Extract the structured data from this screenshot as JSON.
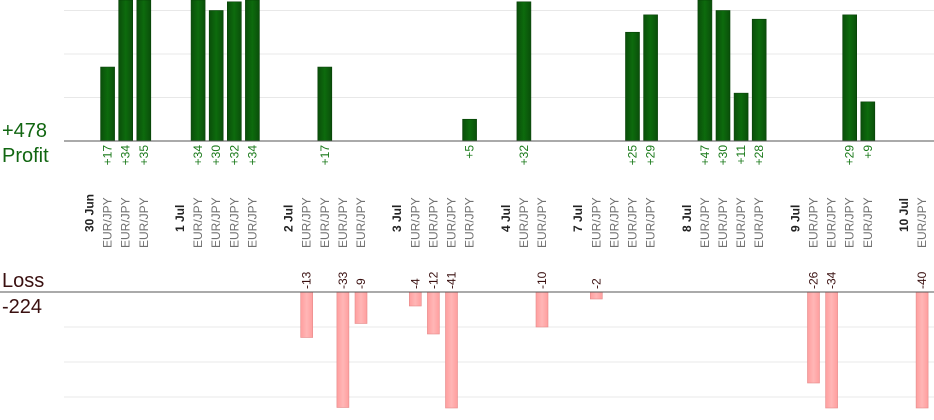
{
  "summary": {
    "profit_total": "+478",
    "profit_label": "Profit",
    "loss_label": "Loss",
    "loss_total": "-224"
  },
  "colors": {
    "profit_bar": "#0d6b0d",
    "profit_text": "#1a7a1a",
    "loss_bar": "#ffb6b6",
    "loss_text": "#3a1010",
    "axis": "#555555",
    "grid": "#e8e8e8"
  },
  "chart_data": {
    "type": "bar",
    "columns": [
      {
        "date": "30 Jun",
        "pair": "",
        "profit": null,
        "loss": null
      },
      {
        "date": "",
        "pair": "EUR/JPY",
        "profit": 17,
        "loss": null
      },
      {
        "date": "",
        "pair": "EUR/JPY",
        "profit": 34,
        "loss": null
      },
      {
        "date": "",
        "pair": "EUR/JPY",
        "profit": 35,
        "loss": null
      },
      {
        "date": "",
        "pair": "",
        "profit": null,
        "loss": null
      },
      {
        "date": "1 Jul",
        "pair": "",
        "profit": null,
        "loss": null
      },
      {
        "date": "",
        "pair": "EUR/JPY",
        "profit": 34,
        "loss": null
      },
      {
        "date": "",
        "pair": "EUR/JPY",
        "profit": 30,
        "loss": null
      },
      {
        "date": "",
        "pair": "EUR/JPY",
        "profit": 32,
        "loss": null
      },
      {
        "date": "",
        "pair": "EUR/JPY",
        "profit": 34,
        "loss": null
      },
      {
        "date": "",
        "pair": "",
        "profit": null,
        "loss": null
      },
      {
        "date": "2 Jul",
        "pair": "",
        "profit": null,
        "loss": null
      },
      {
        "date": "",
        "pair": "EUR/JPY",
        "profit": null,
        "loss": -13
      },
      {
        "date": "",
        "pair": "EUR/JPY",
        "profit": 17,
        "loss": null
      },
      {
        "date": "",
        "pair": "EUR/JPY",
        "profit": null,
        "loss": -33
      },
      {
        "date": "",
        "pair": "EUR/JPY",
        "profit": null,
        "loss": -9
      },
      {
        "date": "",
        "pair": "",
        "profit": null,
        "loss": null
      },
      {
        "date": "3 Jul",
        "pair": "",
        "profit": null,
        "loss": null
      },
      {
        "date": "",
        "pair": "EUR/JPY",
        "profit": null,
        "loss": -4
      },
      {
        "date": "",
        "pair": "EUR/JPY",
        "profit": null,
        "loss": -12
      },
      {
        "date": "",
        "pair": "EUR/JPY",
        "profit": null,
        "loss": -41
      },
      {
        "date": "",
        "pair": "EUR/JPY",
        "profit": 5,
        "loss": null
      },
      {
        "date": "",
        "pair": "",
        "profit": null,
        "loss": null
      },
      {
        "date": "4 Jul",
        "pair": "",
        "profit": null,
        "loss": null
      },
      {
        "date": "",
        "pair": "EUR/JPY",
        "profit": 32,
        "loss": null
      },
      {
        "date": "",
        "pair": "EUR/JPY",
        "profit": null,
        "loss": -10
      },
      {
        "date": "",
        "pair": "",
        "profit": null,
        "loss": null
      },
      {
        "date": "7 Jul",
        "pair": "",
        "profit": null,
        "loss": null
      },
      {
        "date": "",
        "pair": "EUR/JPY",
        "profit": null,
        "loss": -2
      },
      {
        "date": "",
        "pair": "EUR/JPY",
        "profit": null,
        "loss": null
      },
      {
        "date": "",
        "pair": "EUR/JPY",
        "profit": 25,
        "loss": null
      },
      {
        "date": "",
        "pair": "EUR/JPY",
        "profit": 29,
        "loss": null
      },
      {
        "date": "",
        "pair": "",
        "profit": null,
        "loss": null
      },
      {
        "date": "8 Jul",
        "pair": "",
        "profit": null,
        "loss": null
      },
      {
        "date": "",
        "pair": "EUR/JPY",
        "profit": 47,
        "loss": null
      },
      {
        "date": "",
        "pair": "EUR/JPY",
        "profit": 30,
        "loss": null
      },
      {
        "date": "",
        "pair": "EUR/JPY",
        "profit": 11,
        "loss": null
      },
      {
        "date": "",
        "pair": "EUR/JPY",
        "profit": 28,
        "loss": null
      },
      {
        "date": "",
        "pair": "",
        "profit": null,
        "loss": null
      },
      {
        "date": "9 Jul",
        "pair": "",
        "profit": null,
        "loss": null
      },
      {
        "date": "",
        "pair": "EUR/JPY",
        "profit": null,
        "loss": -26
      },
      {
        "date": "",
        "pair": "EUR/JPY",
        "profit": null,
        "loss": -34
      },
      {
        "date": "",
        "pair": "EUR/JPY",
        "profit": 29,
        "loss": null
      },
      {
        "date": "",
        "pair": "EUR/JPY",
        "profit": 9,
        "loss": null
      },
      {
        "date": "",
        "pair": "",
        "profit": null,
        "loss": null
      },
      {
        "date": "10 Jul",
        "pair": "",
        "profit": null,
        "loss": null
      },
      {
        "date": "",
        "pair": "EUR/JPY",
        "profit": null,
        "loss": -40
      }
    ],
    "profit_axis": {
      "ylim": [
        0,
        33
      ],
      "gridlines": [
        10,
        20,
        30
      ]
    },
    "loss_axis": {
      "ylim": [
        -33,
        0
      ],
      "gridlines": [
        -10,
        -20,
        -30
      ]
    }
  }
}
